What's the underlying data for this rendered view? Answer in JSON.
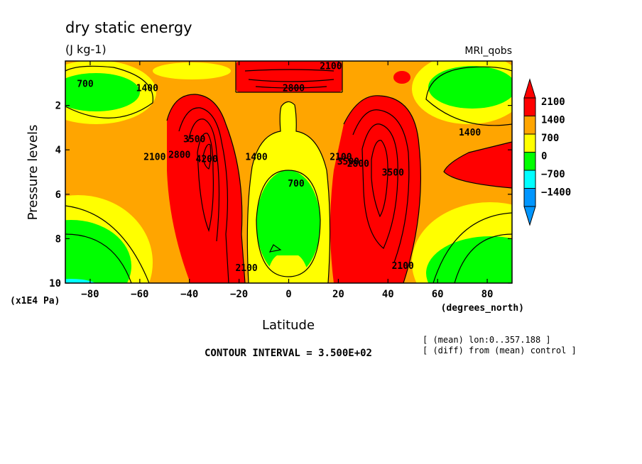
{
  "chart_data": {
    "type": "contour",
    "title": "dry static energy",
    "subtitle": "(J kg-1)",
    "model_label": "MRI_qobs",
    "xlabel": "Latitude",
    "x_units": "(degrees_north)",
    "ylabel": "Pressure levels",
    "y_units": "(x1E4 Pa)",
    "xlim": [
      -90,
      90
    ],
    "ylim": [
      0,
      10
    ],
    "x_ticks": [
      -80,
      -60,
      -40,
      -20,
      0,
      20,
      40,
      60,
      80
    ],
    "y_ticks": [
      2,
      4,
      6,
      8,
      10
    ],
    "contour_interval_text": "CONTOUR INTERVAL = 3.500E+02",
    "notes": [
      "[ (mean) lon:0..357.188 ]",
      "[ (diff) from (mean) control ]"
    ],
    "colorbar": {
      "labels": [
        "2100",
        "1400",
        "700",
        "0",
        "-700",
        "-1400"
      ],
      "colors": [
        "#ff0000",
        "#ffa500",
        "#ffff00",
        "#00ff00",
        "#00ffff",
        "#0096ff"
      ],
      "over_color": "#ff0000",
      "under_color": "#0096ff"
    },
    "contour_labels": [
      {
        "x": -82,
        "y": 1.0,
        "text": "700"
      },
      {
        "x": -57,
        "y": 1.2,
        "text": "1400"
      },
      {
        "x": 17,
        "y": 0.2,
        "text": "2100"
      },
      {
        "x": 2,
        "y": 1.2,
        "text": "2800"
      },
      {
        "x": -38,
        "y": 3.5,
        "text": "3500"
      },
      {
        "x": -33,
        "y": 4.4,
        "text": "4200"
      },
      {
        "x": -44,
        "y": 4.2,
        "text": "2800"
      },
      {
        "x": -54,
        "y": 4.3,
        "text": "2100"
      },
      {
        "x": -13,
        "y": 4.3,
        "text": "1400"
      },
      {
        "x": 3,
        "y": 5.5,
        "text": "700"
      },
      {
        "x": -17,
        "y": 9.3,
        "text": "2100"
      },
      {
        "x": 21,
        "y": 4.3,
        "text": "2100"
      },
      {
        "x": 24,
        "y": 4.5,
        "text": "3500"
      },
      {
        "x": 28,
        "y": 4.6,
        "text": "2800"
      },
      {
        "x": 42,
        "y": 5.0,
        "text": "3500"
      },
      {
        "x": 46,
        "y": 9.2,
        "text": "2100"
      },
      {
        "x": 73,
        "y": 3.2,
        "text": "1400"
      }
    ]
  }
}
